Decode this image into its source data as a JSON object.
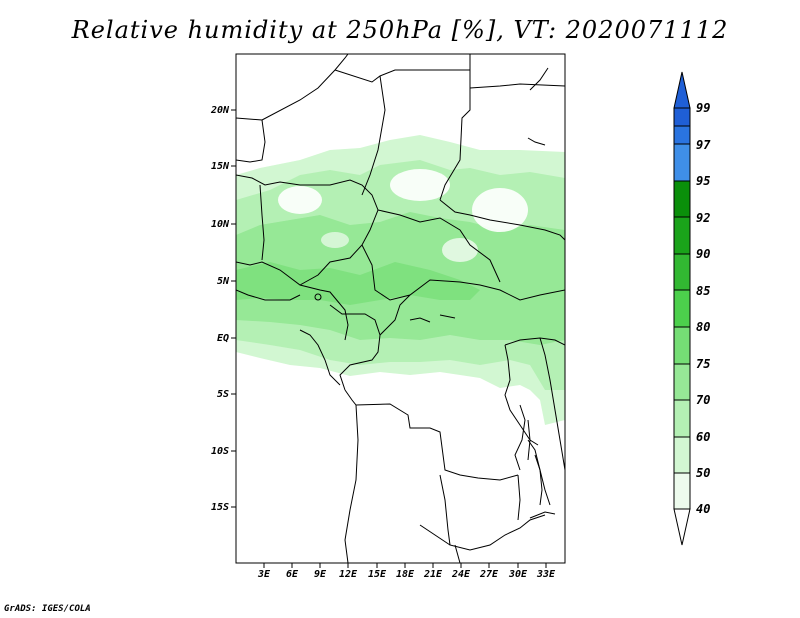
{
  "title": "Relative humidity at 250hPa [%], VT: 2020071112",
  "credit": "GrADS: IGES/COLA",
  "map": {
    "lat_labels": [
      "20N",
      "15N",
      "10N",
      "5N",
      "EQ",
      "5S",
      "10S",
      "15S"
    ],
    "lon_labels": [
      "3E",
      "6E",
      "9E",
      "12E",
      "15E",
      "18E",
      "21E",
      "24E",
      "27E",
      "30E",
      "33E"
    ]
  },
  "colorbar": {
    "labels": [
      "99",
      "97",
      "95",
      "92",
      "90",
      "85",
      "80",
      "75",
      "70",
      "60",
      "50",
      "40"
    ],
    "colors": [
      "#1f5fd6",
      "#2a74e0",
      "#3f8fe8",
      "#0a8f0a",
      "#1aa31a",
      "#32b832",
      "#4cd04c",
      "#75de75",
      "#96e896",
      "#b4f0b4",
      "#d2f7d2",
      "#edfbed"
    ]
  },
  "chart_data": {
    "type": "heatmap",
    "title": "Relative humidity at 250hPa [%], VT: 2020071112",
    "variable": "Relative humidity",
    "units": "%",
    "level": "250hPa",
    "valid_time": "2020071112",
    "x_ticks": [
      "3E",
      "6E",
      "9E",
      "12E",
      "15E",
      "18E",
      "21E",
      "24E",
      "27E",
      "30E",
      "33E"
    ],
    "y_ticks": [
      "20N",
      "15N",
      "10N",
      "5N",
      "EQ",
      "5S",
      "10S",
      "15S"
    ],
    "lon_range": [
      0,
      35
    ],
    "lat_range": [
      -20,
      25
    ],
    "contour_levels": [
      40,
      50,
      60,
      70,
      75,
      80,
      85,
      90,
      92,
      95,
      97,
      99
    ],
    "humid_band": {
      "lat_north": 15,
      "lat_south": -4,
      "max_value_approx": 75
    }
  }
}
